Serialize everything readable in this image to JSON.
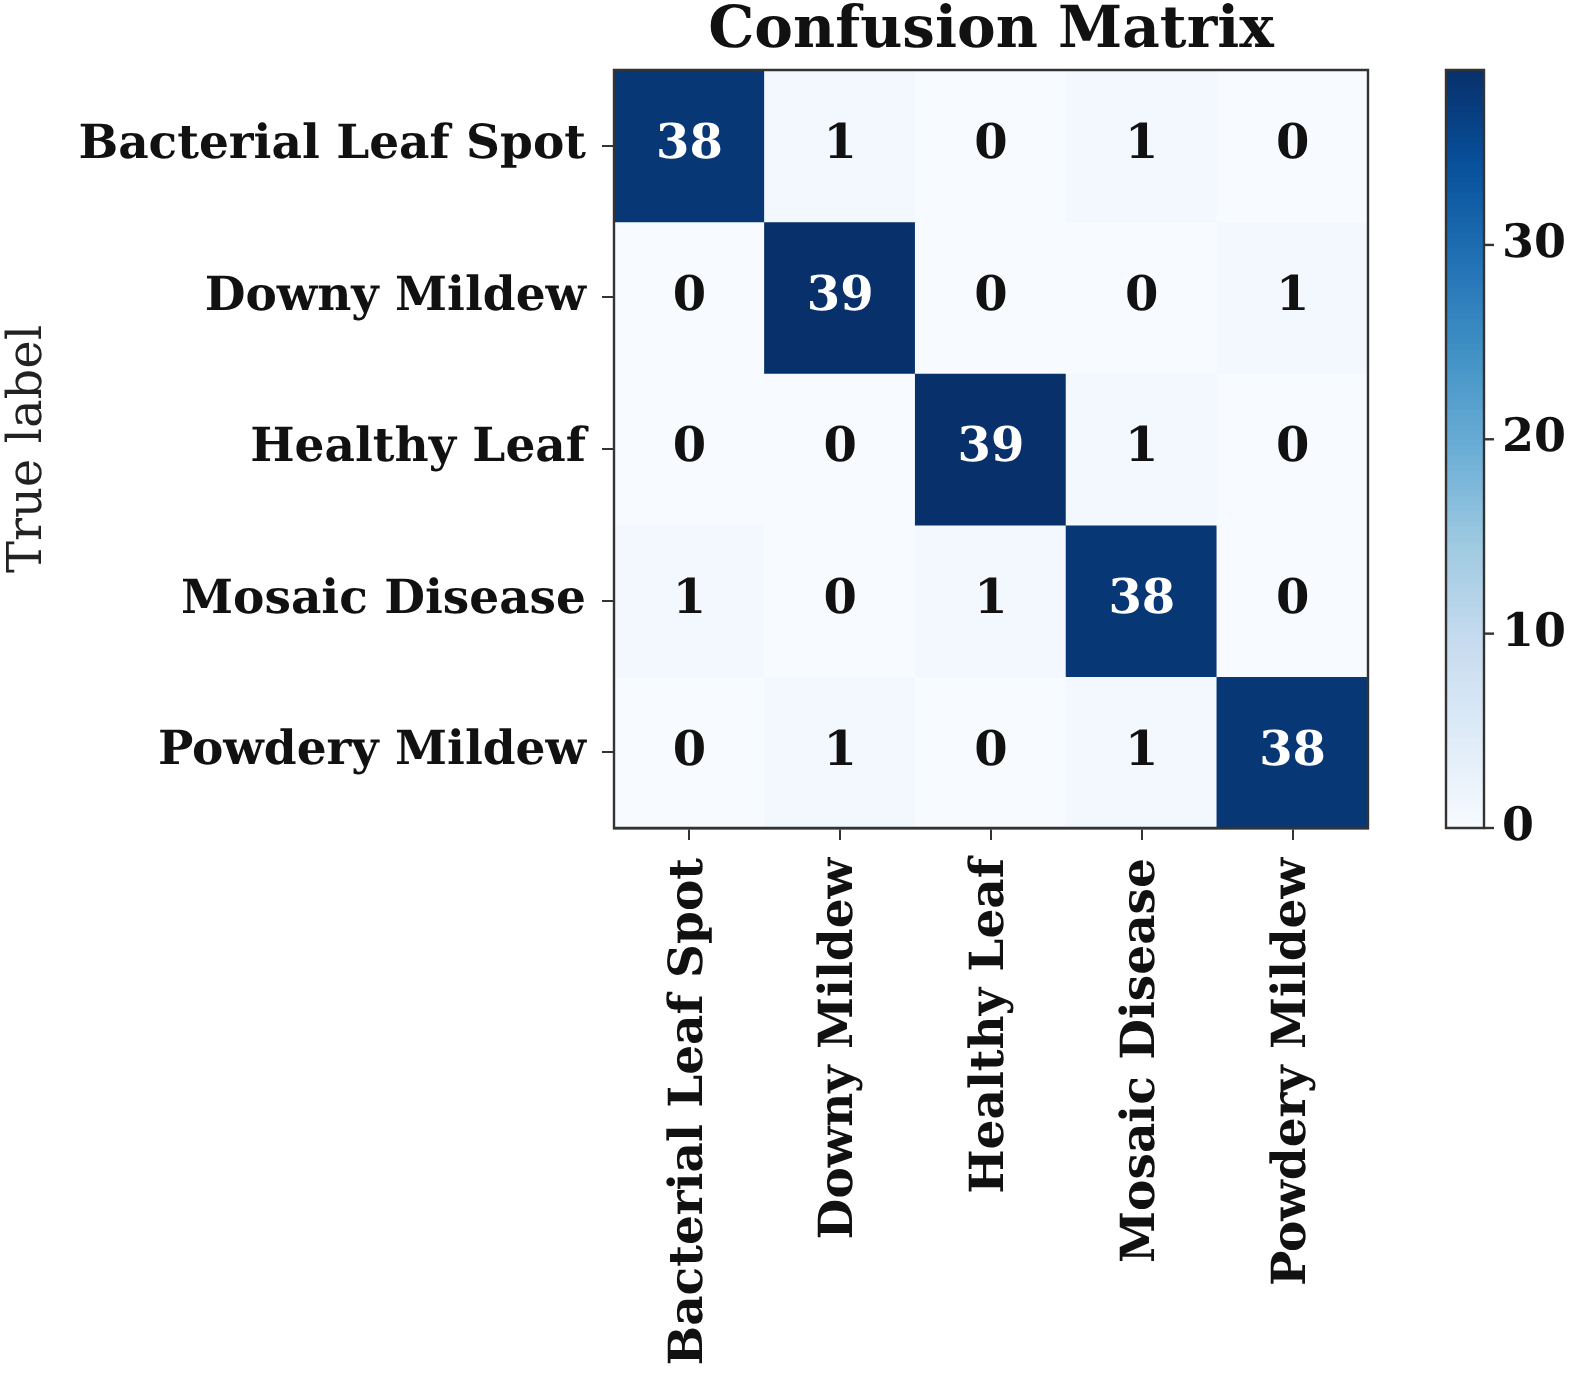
{
  "chart_data": {
    "type": "heatmap",
    "title": "Confusion Matrix",
    "ylabel": "True label",
    "categories": [
      "Bacterial Leaf Spot",
      "Downy Mildew",
      "Healthy Leaf",
      "Mosaic Disease",
      "Powdery Mildew"
    ],
    "y_categories": [
      "Bacterial Leaf Spot",
      "Downy Mildew",
      "Healthy Leaf",
      "Mosaic Disease",
      "Powdery Mildew"
    ],
    "cells": [
      [
        38,
        1,
        0,
        1,
        0
      ],
      [
        0,
        39,
        0,
        0,
        1
      ],
      [
        0,
        0,
        39,
        1,
        0
      ],
      [
        1,
        0,
        1,
        38,
        0
      ],
      [
        0,
        1,
        0,
        1,
        38
      ]
    ],
    "clim": [
      0,
      39
    ],
    "cticks": [
      0,
      10,
      20,
      30
    ],
    "data_labels": true
  }
}
